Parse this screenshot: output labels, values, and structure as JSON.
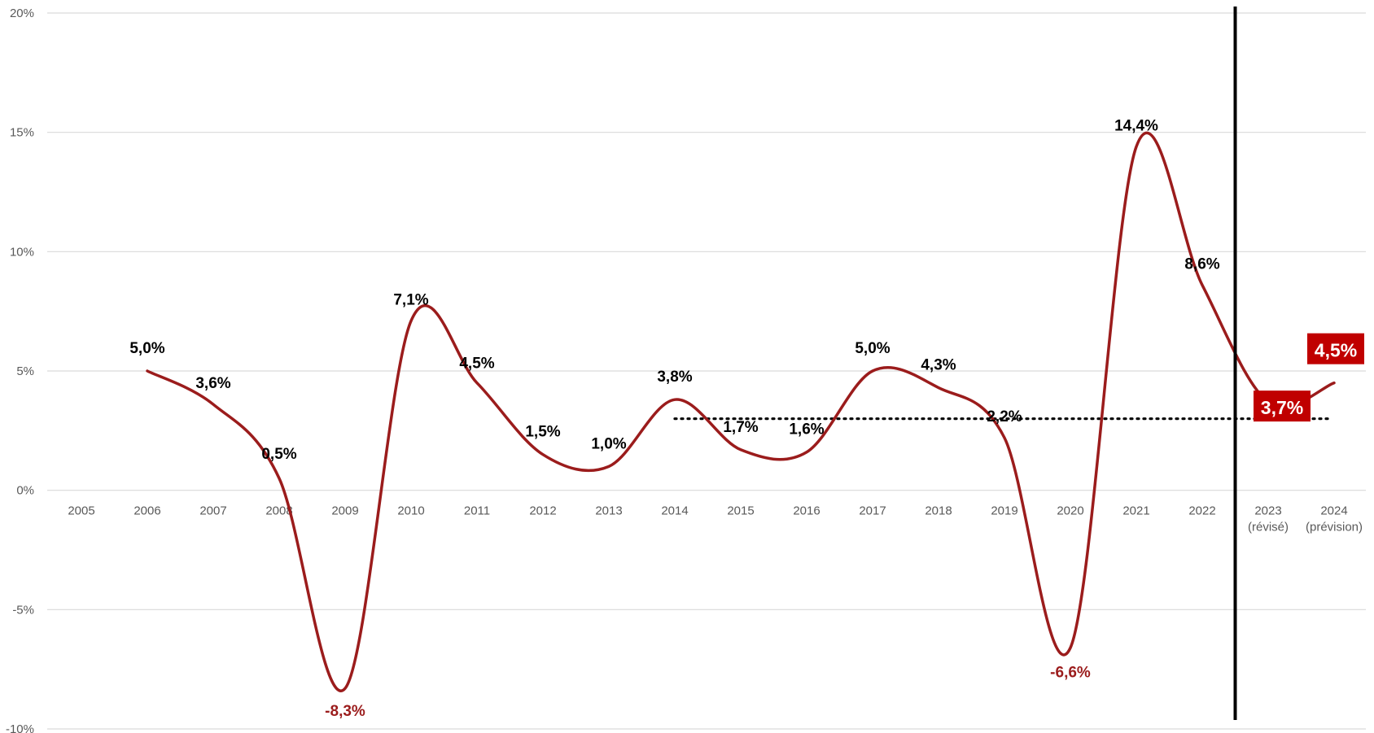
{
  "chart_data": {
    "type": "line",
    "title": "",
    "xlabel": "",
    "ylabel": "",
    "categories": [
      "2005",
      "2006",
      "2007",
      "2008",
      "2009",
      "2010",
      "2011",
      "2012",
      "2013",
      "2014",
      "2015",
      "2016",
      "2017",
      "2018",
      "2019",
      "2020",
      "2021",
      "2022",
      "2023",
      "2024"
    ],
    "category_sublabels": [
      "",
      "",
      "",
      "",
      "",
      "",
      "",
      "",
      "",
      "",
      "",
      "",
      "",
      "",
      "",
      "",
      "",
      "",
      "(révisé)",
      "(prévision)"
    ],
    "y_ticks": [
      "20%",
      "15%",
      "10%",
      "5%",
      "0%",
      "-5%",
      "-10%"
    ],
    "ylim": [
      -10,
      20
    ],
    "grid": true,
    "series": [
      {
        "values": [
          null,
          5.0,
          3.6,
          0.5,
          -8.3,
          7.1,
          4.5,
          1.5,
          1.0,
          3.8,
          1.7,
          1.6,
          5.0,
          4.3,
          2.2,
          -6.6,
          14.4,
          8.6,
          3.7,
          4.5
        ],
        "labels": [
          "",
          "5,0%",
          "3,6%",
          "0,5%",
          "-8,3%",
          "7,1%",
          "4,5%",
          "1,5%",
          "1,0%",
          "3,8%",
          "1,7%",
          "1,6%",
          "5,0%",
          "4,3%",
          "2,2%",
          "-6,6%",
          "14,4%",
          "8,6%",
          "3,7%",
          "4,5%"
        ],
        "color": "#9b1c1c"
      }
    ],
    "reference_line": {
      "value": 3.0,
      "from": "2014",
      "to": "2024"
    },
    "vertical_separator_after": "2022",
    "colors": {
      "line": "#9b1c1c",
      "negative_label": "#9b1c1c",
      "positive_label": "#000000",
      "highlight_box": "#c00000",
      "grid": "#d9d9d9"
    }
  }
}
